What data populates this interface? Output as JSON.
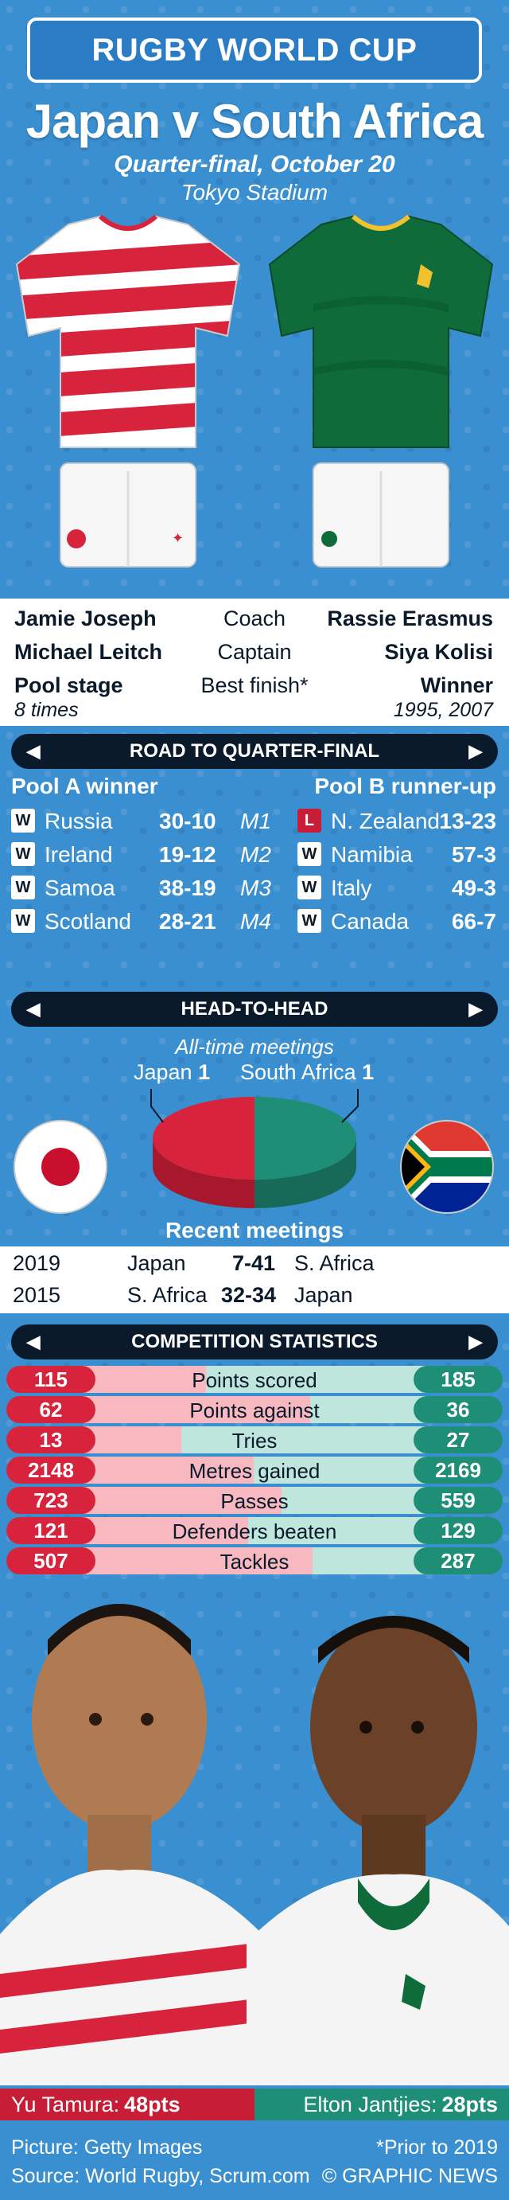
{
  "header": {
    "banner": "RUGBY WORLD CUP",
    "title": "Japan v South Africa",
    "subtitle": "Quarter-final, October 20",
    "venue": "Tokyo Stadium"
  },
  "colors": {
    "japan_red": "#d8233d",
    "south_africa_green": "#1f8e77",
    "navy": "#0b1a2b",
    "background_blue": "#3a8fd0"
  },
  "team_info": {
    "coach": {
      "left": "Jamie Joseph",
      "center": "Coach",
      "right": "Rassie Erasmus"
    },
    "captain": {
      "left": "Michael Leitch",
      "center": "Captain",
      "right": "Siya Kolisi"
    },
    "best_finish": {
      "left": "Pool stage",
      "center": "Best finish*",
      "right": "Winner",
      "left_sub": "8 times",
      "right_sub": "1995, 2007"
    }
  },
  "road": {
    "section_title": "ROAD TO QUARTER-FINAL",
    "left_label": "Pool A winner",
    "right_label": "Pool B runner-up",
    "rows": [
      {
        "l_res": "W",
        "l_opp": "Russia",
        "l_score": "30-10",
        "match": "M1",
        "r_res": "L",
        "r_opp": "N. Zealand",
        "r_score": "13-23"
      },
      {
        "l_res": "W",
        "l_opp": "Ireland",
        "l_score": "19-12",
        "match": "M2",
        "r_res": "W",
        "r_opp": "Namibia",
        "r_score": "57-3"
      },
      {
        "l_res": "W",
        "l_opp": "Samoa",
        "l_score": "38-19",
        "match": "M3",
        "r_res": "W",
        "r_opp": "Italy",
        "r_score": "49-3"
      },
      {
        "l_res": "W",
        "l_opp": "Scotland",
        "l_score": "28-21",
        "match": "M4",
        "r_res": "W",
        "r_opp": "Canada",
        "r_score": "66-7"
      }
    ]
  },
  "h2h": {
    "section_title": "HEAD-TO-HEAD",
    "meetings_label": "All-time meetings",
    "left_team": "Japan",
    "left_wins": "1",
    "right_team": "South Africa",
    "right_wins": "1",
    "recent_title": "Recent meetings",
    "recent": [
      {
        "year": "2019",
        "home": "Japan",
        "score": "7-41",
        "away": "S. Africa"
      },
      {
        "year": "2015",
        "home": "S. Africa",
        "score": "32-34",
        "away": "Japan"
      }
    ]
  },
  "stats": {
    "section_title": "COMPETITION STATISTICS"
  },
  "chart_data": [
    {
      "type": "pie",
      "title": "All-time meetings",
      "categories": [
        "Japan",
        "South Africa"
      ],
      "values": [
        1,
        1
      ]
    },
    {
      "type": "bar",
      "title": "COMPETITION STATISTICS",
      "categories": [
        "Points scored",
        "Points against",
        "Tries",
        "Metres gained",
        "Passes",
        "Defenders beaten",
        "Tackles"
      ],
      "series": [
        {
          "name": "Japan",
          "values": [
            115,
            62,
            13,
            2148,
            723,
            121,
            507
          ]
        },
        {
          "name": "South Africa",
          "values": [
            185,
            36,
            27,
            2169,
            559,
            129,
            287
          ]
        }
      ]
    }
  ],
  "scorers": {
    "left_name": "Yu Tamura:",
    "left_pts": "48pts",
    "right_name": "Elton Jantjies:",
    "right_pts": "28pts"
  },
  "footer": {
    "picture": "Picture: Getty Images",
    "source": "Source: World Rugby, Scrum.com",
    "note": "*Prior to 2019",
    "credit": "© GRAPHIC NEWS"
  }
}
